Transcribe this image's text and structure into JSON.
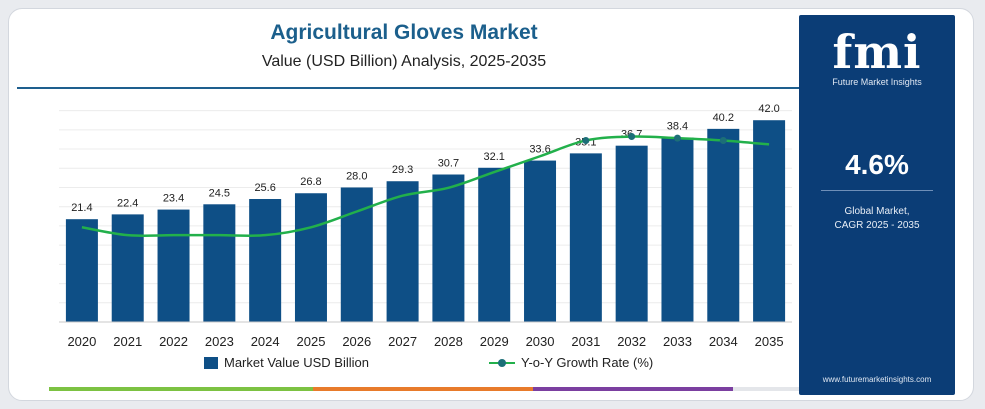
{
  "title": "Agricultural Gloves Market",
  "subtitle": "Value (USD Billion) Analysis, 2025-2035",
  "colors": {
    "bar": "#0e4f86",
    "line": "#22b04b",
    "marker": "#1c6f78",
    "title": "#1b5f8c",
    "panel": "#0b3d76",
    "strip": [
      "#7cc242",
      "#e87b2b",
      "#7b3fa0",
      "#e4e6ea"
    ]
  },
  "legend": {
    "bar_label": "Market Value USD Billion",
    "line_label": "Y-o-Y Growth Rate (%)"
  },
  "chart_data": {
    "type": "bar",
    "title": "Agricultural Gloves Market",
    "subtitle": "Value (USD Billion) Analysis, 2025-2035",
    "xlabel": "",
    "ylabel": "",
    "ylim": [
      0,
      46
    ],
    "grid": true,
    "legend_position": "bottom",
    "categories": [
      "2020",
      "2021",
      "2022",
      "2023",
      "2024",
      "2025",
      "2026",
      "2027",
      "2028",
      "2029",
      "2030",
      "2031",
      "2032",
      "2033",
      "2034",
      "2035"
    ],
    "series": [
      {
        "name": "Market Value USD Billion",
        "type": "bar",
        "values": [
          21.4,
          22.4,
          23.4,
          24.5,
          25.6,
          26.8,
          28.0,
          29.3,
          30.7,
          32.1,
          33.6,
          35.1,
          36.7,
          38.4,
          40.2,
          42.0
        ]
      },
      {
        "name": "Y-o-Y Growth Rate (%)",
        "type": "line",
        "values": [
          4.7,
          4.6,
          4.6,
          4.6,
          4.6,
          4.7,
          4.9,
          5.1,
          5.2,
          5.4,
          5.6,
          5.8,
          5.85,
          5.83,
          5.8,
          5.75
        ],
        "markers_at": [
          11,
          12,
          13,
          14
        ],
        "y_range": [
          3.5,
          6.3
        ]
      }
    ]
  },
  "panel": {
    "logo": "fmi",
    "logo_sub": "Future Market Insights",
    "cagr": "4.6%",
    "cagr_label_line1": "Global Market,",
    "cagr_label_line2": "CAGR 2025 - 2035",
    "website": "www.futuremarketinsights.com"
  }
}
